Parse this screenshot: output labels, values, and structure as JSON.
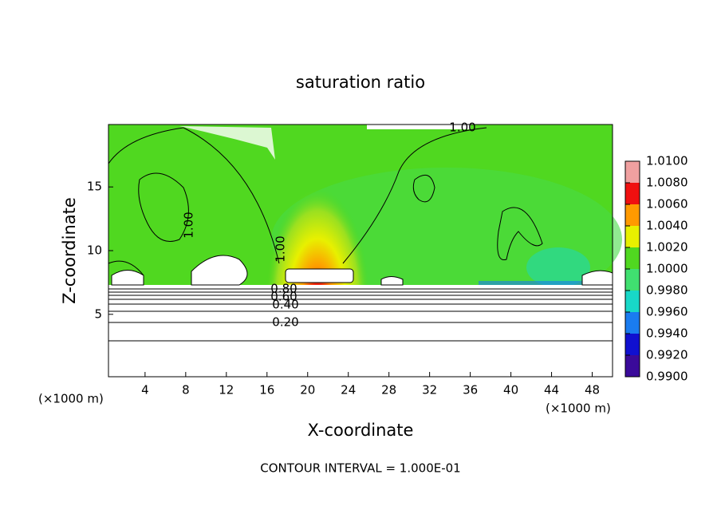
{
  "chart_data": {
    "type": "contour",
    "title": "saturation ratio",
    "x_label": "X-coordinate",
    "y_label": "Z-coordinate",
    "axis_unit": "(×1000 m)",
    "xlim": [
      0.4,
      50
    ],
    "xticks": [
      4,
      8,
      12,
      16,
      20,
      24,
      28,
      32,
      36,
      40,
      44,
      48
    ],
    "ylim": [
      0.1,
      19.9
    ],
    "yticks": [
      5,
      10,
      15
    ],
    "colorbar_ticks": [
      {
        "value": 0.99,
        "label": "0.9900"
      },
      {
        "value": 0.992,
        "label": "0.9920"
      },
      {
        "value": 0.994,
        "label": "0.9940"
      },
      {
        "value": 0.996,
        "label": "0.9960"
      },
      {
        "value": 0.998,
        "label": "0.9980"
      },
      {
        "value": 1.0,
        "label": "1.0000"
      },
      {
        "value": 1.002,
        "label": "1.0020"
      },
      {
        "value": 1.004,
        "label": "1.0040"
      },
      {
        "value": 1.006,
        "label": "1.0060"
      },
      {
        "value": 1.008,
        "label": "1.0080"
      },
      {
        "value": 1.01,
        "label": "1.0100"
      }
    ],
    "colorbar_colors": [
      "#3a0a9a",
      "#1010d0",
      "#1a7cf0",
      "#18d8c8",
      "#40e070",
      "#50d820",
      "#e8f000",
      "#ff9a00",
      "#f01010",
      "#f0a0a0"
    ],
    "contour_labels": [
      "1.00",
      "1.00",
      "1.00",
      "0.80",
      "0.60",
      "0.40",
      "0.20"
    ],
    "footnote": "CONTOUR INTERVAL = 1.000E-01"
  }
}
